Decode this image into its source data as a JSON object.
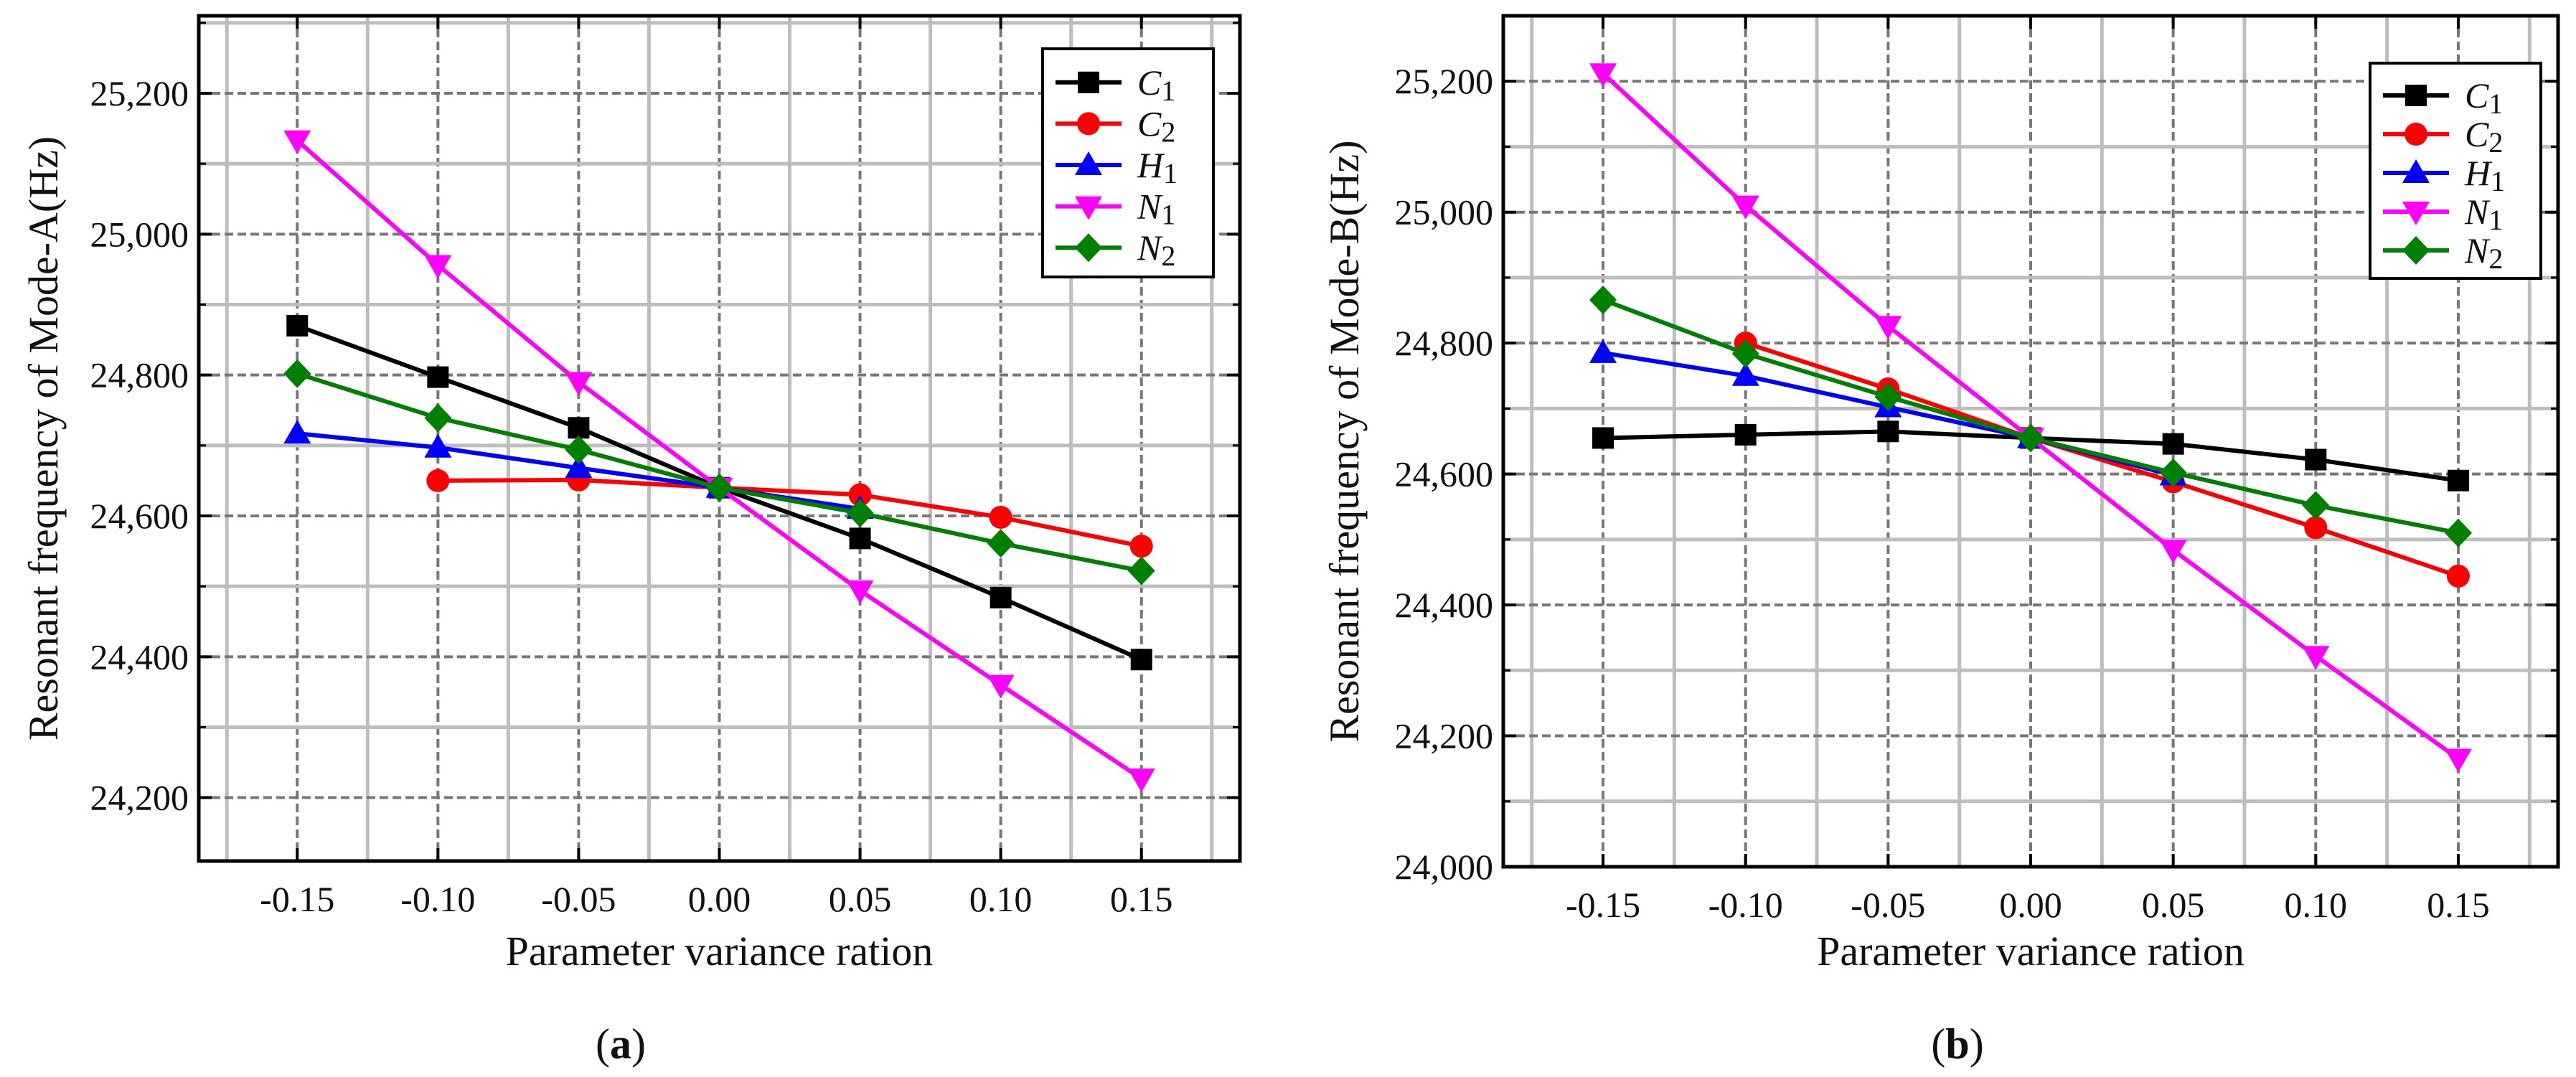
{
  "chart_data": [
    {
      "type": "line",
      "panel_label": "(a)",
      "panel_letter": "a",
      "xlabel": "Parameter variance ration",
      "ylabel": "Resonant frequency of Mode-A(Hz)",
      "xlim": [
        -0.185,
        0.185
      ],
      "ylim": [
        24110,
        25310
      ],
      "xticks": [
        -0.15,
        -0.1,
        -0.05,
        0.0,
        0.05,
        0.1,
        0.15
      ],
      "xtick_labels": [
        "-0.15",
        "-0.10",
        "-0.05",
        "0.00",
        "0.05",
        "0.10",
        "0.15"
      ],
      "yticks": [
        24200,
        24400,
        24600,
        24800,
        25000,
        25200
      ],
      "ytick_labels": [
        "24,200",
        "24,400",
        "24,600",
        "24,800",
        "25,000",
        "25,200"
      ],
      "grid": true,
      "legend_position": "top-right",
      "series": [
        {
          "name": "C1",
          "base": "C",
          "sub": "1",
          "color": "#000000",
          "marker": "square",
          "x": [
            -0.15,
            -0.1,
            -0.05,
            0.0,
            0.05,
            0.1,
            0.15
          ],
          "values": [
            24870,
            24797,
            24725,
            24640,
            24568,
            24484,
            24396
          ]
        },
        {
          "name": "C2",
          "base": "C",
          "sub": "2",
          "color": "#ff0000",
          "marker": "circle",
          "x": [
            -0.1,
            -0.05,
            0.0,
            0.05,
            0.1,
            0.15
          ],
          "values": [
            24650,
            24651,
            24640,
            24630,
            24598,
            24557
          ]
        },
        {
          "name": "H1",
          "base": "H",
          "sub": "1",
          "color": "#0000ff",
          "marker": "triangle-up",
          "x": [
            -0.15,
            -0.1,
            -0.05,
            0.0,
            0.05
          ],
          "values": [
            24717,
            24697,
            24668,
            24640,
            24610
          ]
        },
        {
          "name": "N1",
          "base": "N",
          "sub": "1",
          "color": "#ff00ff",
          "marker": "triangle-down",
          "x": [
            -0.15,
            -0.1,
            -0.05,
            0.0,
            0.05,
            0.1,
            0.15
          ],
          "values": [
            25133,
            24956,
            24790,
            24640,
            24494,
            24360,
            24227
          ]
        },
        {
          "name": "N2",
          "base": "N",
          "sub": "2",
          "color": "#008000",
          "marker": "diamond",
          "x": [
            -0.15,
            -0.1,
            -0.05,
            0.0,
            0.05,
            0.1,
            0.15
          ],
          "values": [
            24802,
            24739,
            24694,
            24640,
            24604,
            24561,
            24522
          ]
        }
      ]
    },
    {
      "type": "line",
      "panel_label": "(b)",
      "panel_letter": "b",
      "xlabel": "Parameter variance ration",
      "ylabel": "Resonant frequency of Mode-B(Hz)",
      "xlim": [
        -0.185,
        0.185
      ],
      "ylim": [
        24000,
        25300
      ],
      "xticks": [
        -0.15,
        -0.1,
        -0.05,
        0.0,
        0.05,
        0.1,
        0.15
      ],
      "xtick_labels": [
        "-0.15",
        "-0.10",
        "-0.05",
        "0.00",
        "0.05",
        "0.10",
        "0.15"
      ],
      "yticks": [
        24000,
        24200,
        24400,
        24600,
        24800,
        25000,
        25200
      ],
      "ytick_labels": [
        "24,000",
        "24,200",
        "24,400",
        "24,600",
        "24,800",
        "25,000",
        "25,200"
      ],
      "grid": true,
      "legend_position": "top-right",
      "series": [
        {
          "name": "C1",
          "base": "C",
          "sub": "1",
          "color": "#000000",
          "marker": "square",
          "x": [
            -0.15,
            -0.1,
            -0.05,
            0.0,
            0.05,
            0.1,
            0.15
          ],
          "values": [
            24655,
            24660,
            24665,
            24655,
            24646,
            24622,
            24590
          ]
        },
        {
          "name": "C2",
          "base": "C",
          "sub": "2",
          "color": "#ff0000",
          "marker": "circle",
          "x": [
            -0.1,
            -0.05,
            0.0,
            0.05,
            0.1,
            0.15
          ],
          "values": [
            24800,
            24730,
            24655,
            24588,
            24518,
            24444
          ]
        },
        {
          "name": "H1",
          "base": "H",
          "sub": "1",
          "color": "#0000ff",
          "marker": "triangle-up",
          "x": [
            -0.15,
            -0.1,
            -0.05,
            0.0,
            0.05
          ],
          "values": [
            24785,
            24750,
            24702,
            24655,
            24598
          ]
        },
        {
          "name": "N1",
          "base": "N",
          "sub": "1",
          "color": "#ff00ff",
          "marker": "triangle-down",
          "x": [
            -0.15,
            -0.1,
            -0.05,
            0.0,
            0.05,
            0.1,
            0.15
          ],
          "values": [
            25212,
            25010,
            24826,
            24655,
            24484,
            24322,
            24165
          ]
        },
        {
          "name": "N2",
          "base": "N",
          "sub": "2",
          "color": "#008000",
          "marker": "diamond",
          "x": [
            -0.15,
            -0.1,
            -0.05,
            0.0,
            0.05,
            0.1,
            0.15
          ],
          "values": [
            24866,
            24784,
            24718,
            24655,
            24602,
            24552,
            24510
          ]
        }
      ]
    }
  ]
}
